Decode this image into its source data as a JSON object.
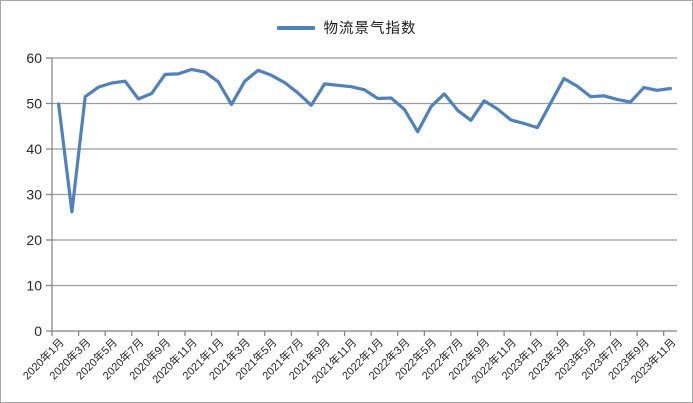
{
  "chart_data": {
    "type": "line",
    "title": "",
    "legend_label": "物流景气指数",
    "legend_position": "top-center",
    "grid": "horizontal",
    "ylim": [
      0,
      60
    ],
    "y_ticks": [
      0,
      10,
      20,
      30,
      40,
      50,
      60
    ],
    "x_label_interval": 2,
    "categories": [
      "2020年1月",
      "2020年2月",
      "2020年3月",
      "2020年4月",
      "2020年5月",
      "2020年6月",
      "2020年7月",
      "2020年8月",
      "2020年9月",
      "2020年10月",
      "2020年11月",
      "2020年12月",
      "2021年1月",
      "2021年2月",
      "2021年3月",
      "2021年4月",
      "2021年5月",
      "2021年6月",
      "2021年7月",
      "2021年8月",
      "2021年9月",
      "2021年10月",
      "2021年11月",
      "2021年12月",
      "2022年1月",
      "2022年2月",
      "2022年3月",
      "2022年4月",
      "2022年5月",
      "2022年6月",
      "2022年7月",
      "2022年8月",
      "2022年9月",
      "2022年10月",
      "2022年11月",
      "2022年12月",
      "2023年1月",
      "2023年2月",
      "2023年3月",
      "2023年4月",
      "2023年5月",
      "2023年6月",
      "2023年7月",
      "2023年8月",
      "2023年9月",
      "2023年10月",
      "2023年11月"
    ],
    "series": [
      {
        "name": "物流景气指数",
        "color": "#4f81bd",
        "values": [
          49.9,
          26.2,
          51.5,
          53.6,
          54.5,
          54.9,
          51.0,
          52.2,
          56.4,
          56.5,
          57.5,
          56.9,
          54.8,
          49.8,
          54.9,
          57.3,
          56.2,
          54.6,
          52.3,
          49.6,
          54.3,
          54.0,
          53.7,
          53.0,
          51.1,
          51.2,
          48.7,
          43.8,
          49.3,
          52.1,
          48.5,
          46.3,
          50.6,
          48.8,
          46.4,
          45.6,
          44.7,
          50.1,
          55.5,
          53.8,
          51.5,
          51.7,
          50.9,
          50.3,
          53.5,
          52.9,
          53.3
        ]
      }
    ],
    "colors": {
      "series": "#4f81bd",
      "grid": "#9b9b9b",
      "axis": "#7f7f7f",
      "text": "#262626",
      "border": "#a6a6a6",
      "background": "#ffffff"
    }
  }
}
